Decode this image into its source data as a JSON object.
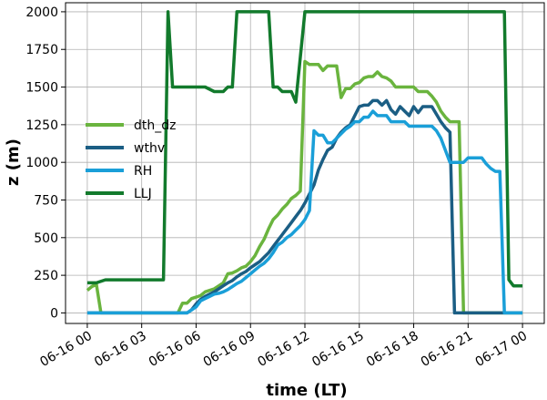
{
  "chart_data": {
    "type": "line",
    "xlabel": "time (LT)",
    "ylabel": "z (m)",
    "ylim": [
      -70,
      2060
    ],
    "xlim_hours": [
      -1.2,
      25.2
    ],
    "grid": true,
    "legend_position": "center-left",
    "x_ticks": [
      {
        "hour": 0,
        "label": "06-16 00"
      },
      {
        "hour": 3,
        "label": "06-16 03"
      },
      {
        "hour": 6,
        "label": "06-16 06"
      },
      {
        "hour": 9,
        "label": "06-16 09"
      },
      {
        "hour": 12,
        "label": "06-16 12"
      },
      {
        "hour": 15,
        "label": "06-16 15"
      },
      {
        "hour": 18,
        "label": "06-16 18"
      },
      {
        "hour": 21,
        "label": "06-16 21"
      },
      {
        "hour": 24,
        "label": "06-17 00"
      }
    ],
    "y_ticks": [
      0,
      250,
      500,
      750,
      1000,
      1250,
      1500,
      1750,
      2000
    ],
    "series": [
      {
        "name": "dth_dz",
        "color": "#6ab43e",
        "x": [
          0.0,
          0.25,
          0.5,
          0.75,
          1.0,
          1.5,
          2.0,
          2.5,
          3.0,
          3.5,
          4.0,
          4.5,
          5.0,
          5.25,
          5.5,
          5.75,
          6.0,
          6.25,
          6.5,
          6.75,
          7.0,
          7.25,
          7.5,
          7.75,
          8.0,
          8.25,
          8.5,
          8.75,
          9.0,
          9.25,
          9.5,
          9.75,
          10.0,
          10.25,
          10.5,
          10.75,
          11.0,
          11.25,
          11.5,
          11.75,
          12.0,
          12.25,
          12.5,
          12.75,
          13.0,
          13.25,
          13.5,
          13.75,
          14.0,
          14.25,
          14.5,
          14.75,
          15.0,
          15.25,
          15.5,
          15.75,
          16.0,
          16.25,
          16.5,
          16.75,
          17.0,
          17.25,
          17.5,
          17.75,
          18.0,
          18.25,
          18.5,
          18.75,
          19.0,
          19.25,
          19.5,
          19.75,
          20.0,
          20.25,
          20.5,
          20.75,
          21.0,
          21.25,
          21.5,
          22.0,
          22.5,
          23.0,
          23.5,
          24.0
        ],
        "values": [
          150,
          175,
          190,
          0,
          0,
          0,
          0,
          0,
          0,
          0,
          0,
          0,
          0,
          65,
          65,
          95,
          105,
          115,
          140,
          150,
          160,
          180,
          200,
          260,
          265,
          280,
          300,
          310,
          340,
          380,
          440,
          490,
          560,
          620,
          650,
          690,
          720,
          760,
          780,
          810,
          1670,
          1650,
          1650,
          1650,
          1610,
          1640,
          1640,
          1640,
          1430,
          1490,
          1490,
          1520,
          1530,
          1560,
          1570,
          1570,
          1600,
          1570,
          1560,
          1540,
          1500,
          1500,
          1500,
          1500,
          1500,
          1470,
          1470,
          1470,
          1440,
          1400,
          1340,
          1300,
          1270,
          1270,
          1270,
          0,
          0,
          0,
          0,
          0,
          0,
          0,
          0,
          0
        ]
      },
      {
        "name": "wthv",
        "color": "#1b5e84",
        "x": [
          0.0,
          0.5,
          1.0,
          1.5,
          2.0,
          2.5,
          3.0,
          3.5,
          4.0,
          4.5,
          5.0,
          5.5,
          5.75,
          6.0,
          6.25,
          6.5,
          6.75,
          7.0,
          7.25,
          7.5,
          7.75,
          8.0,
          8.25,
          8.5,
          8.75,
          9.0,
          9.25,
          9.5,
          9.75,
          10.0,
          10.25,
          10.5,
          10.75,
          11.0,
          11.25,
          11.5,
          11.75,
          12.0,
          12.25,
          12.5,
          12.75,
          13.0,
          13.25,
          13.5,
          13.75,
          14.0,
          14.25,
          14.5,
          14.75,
          15.0,
          15.25,
          15.5,
          15.75,
          16.0,
          16.25,
          16.5,
          16.75,
          17.0,
          17.25,
          17.5,
          17.75,
          18.0,
          18.25,
          18.5,
          18.75,
          19.0,
          19.25,
          19.5,
          19.75,
          20.0,
          20.25,
          20.5,
          21.0,
          21.5,
          22.0,
          22.5,
          23.0,
          23.5,
          24.0
        ],
        "values": [
          0,
          0,
          0,
          0,
          0,
          0,
          0,
          0,
          0,
          0,
          0,
          0,
          20,
          60,
          90,
          110,
          125,
          140,
          160,
          180,
          200,
          215,
          240,
          260,
          275,
          300,
          320,
          340,
          370,
          400,
          440,
          480,
          520,
          560,
          600,
          640,
          680,
          730,
          790,
          850,
          950,
          1020,
          1080,
          1100,
          1160,
          1200,
          1230,
          1250,
          1310,
          1370,
          1380,
          1380,
          1410,
          1410,
          1380,
          1410,
          1350,
          1320,
          1370,
          1340,
          1310,
          1370,
          1330,
          1370,
          1370,
          1370,
          1320,
          1270,
          1230,
          1200,
          0,
          0,
          0,
          0,
          0,
          0,
          0,
          0,
          0
        ]
      },
      {
        "name": "RH",
        "color": "#1a9fd8",
        "x": [
          0.0,
          0.5,
          1.0,
          1.5,
          2.0,
          2.5,
          3.0,
          3.5,
          4.0,
          4.5,
          5.0,
          5.5,
          6.0,
          6.25,
          6.5,
          6.75,
          7.0,
          7.25,
          7.5,
          7.75,
          8.0,
          8.25,
          8.5,
          8.75,
          9.0,
          9.25,
          9.5,
          9.75,
          10.0,
          10.25,
          10.5,
          10.75,
          11.0,
          11.25,
          11.5,
          11.75,
          12.0,
          12.25,
          12.5,
          12.75,
          13.0,
          13.25,
          13.5,
          13.75,
          14.0,
          14.25,
          14.5,
          14.75,
          15.0,
          15.25,
          15.5,
          15.75,
          16.0,
          16.25,
          16.5,
          16.75,
          17.0,
          17.25,
          17.5,
          17.75,
          18.0,
          18.25,
          18.5,
          18.75,
          19.0,
          19.25,
          19.5,
          19.75,
          20.0,
          20.25,
          20.5,
          20.75,
          21.0,
          21.25,
          21.5,
          21.75,
          22.0,
          22.25,
          22.5,
          22.75,
          23.0,
          23.25,
          23.5,
          23.75,
          24.0
        ],
        "values": [
          0,
          0,
          0,
          0,
          0,
          0,
          0,
          0,
          0,
          0,
          0,
          0,
          40,
          80,
          95,
          110,
          125,
          130,
          140,
          155,
          175,
          195,
          210,
          235,
          260,
          285,
          310,
          330,
          360,
          400,
          450,
          470,
          500,
          520,
          550,
          580,
          620,
          680,
          1210,
          1180,
          1180,
          1130,
          1130,
          1160,
          1190,
          1220,
          1240,
          1270,
          1270,
          1300,
          1300,
          1340,
          1310,
          1310,
          1310,
          1270,
          1270,
          1270,
          1270,
          1240,
          1240,
          1240,
          1240,
          1240,
          1240,
          1210,
          1160,
          1080,
          1000,
          1000,
          1000,
          1000,
          1030,
          1030,
          1030,
          1030,
          990,
          960,
          940,
          940,
          0,
          0,
          0,
          0,
          0
        ]
      },
      {
        "name": "LLJ",
        "color": "#127a2c",
        "x": [
          0.0,
          0.5,
          1.0,
          1.5,
          2.0,
          2.5,
          3.0,
          3.5,
          4.0,
          4.2,
          4.45,
          4.7,
          5.0,
          5.5,
          6.0,
          6.5,
          7.0,
          7.5,
          7.75,
          8.0,
          8.25,
          8.5,
          9.0,
          9.5,
          10.0,
          10.25,
          10.5,
          10.75,
          11.0,
          11.25,
          11.5,
          12.0,
          12.5,
          13.0,
          14.0,
          15.0,
          16.0,
          17.0,
          18.0,
          19.0,
          20.0,
          21.0,
          21.5,
          22.0,
          22.5,
          23.0,
          23.25,
          23.5,
          23.75,
          24.0
        ],
        "values": [
          200,
          200,
          220,
          220,
          220,
          220,
          220,
          220,
          220,
          220,
          2000,
          1500,
          1500,
          1500,
          1500,
          1500,
          1470,
          1470,
          1500,
          1500,
          2000,
          2000,
          2000,
          2000,
          2000,
          1500,
          1500,
          1470,
          1470,
          1470,
          1400,
          2000,
          2000,
          2000,
          2000,
          2000,
          2000,
          2000,
          2000,
          2000,
          2000,
          2000,
          2000,
          2000,
          2000,
          2000,
          220,
          180,
          180,
          180
        ]
      }
    ]
  }
}
